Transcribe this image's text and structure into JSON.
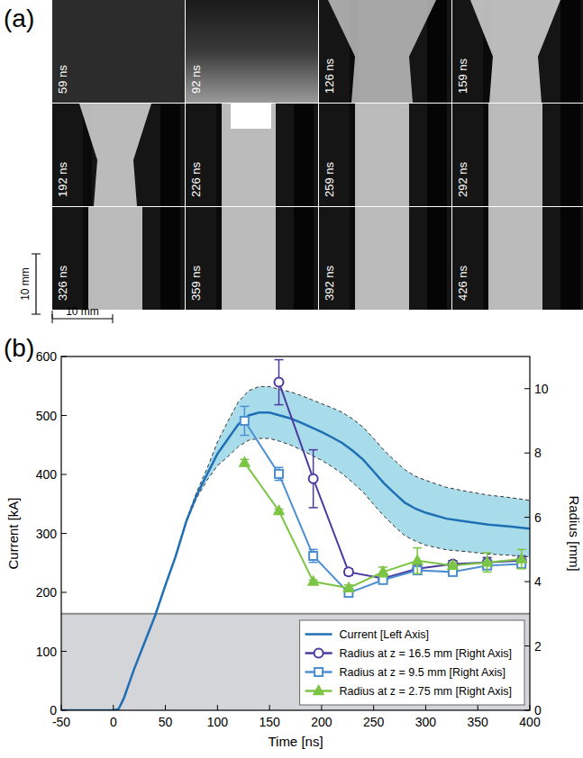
{
  "images": {
    "panel_label": "(a)",
    "frames": [
      "59 ns",
      "92 ns",
      "126 ns",
      "159 ns",
      "192 ns",
      "226 ns",
      "259 ns",
      "292 ns",
      "326 ns",
      "359 ns",
      "392 ns",
      "426 ns"
    ],
    "scale_bar_vertical": "10 mm",
    "scale_bar_horizontal": "10 mm"
  },
  "chart_data": {
    "panel_label": "(b)",
    "type": "line",
    "x_label": "Time [ns]",
    "y_label": "Current [kA]",
    "y2_label": "Radius [mm]",
    "xlim": [
      -50,
      400
    ],
    "xticks": [
      -50,
      0,
      50,
      100,
      150,
      200,
      250,
      300,
      350,
      400
    ],
    "ylim": [
      0,
      600
    ],
    "yticks": [
      0,
      100,
      200,
      300,
      400,
      500,
      600
    ],
    "y2lim": [
      0,
      11
    ],
    "y2ticks": [
      0,
      2,
      4,
      6,
      8,
      10
    ],
    "shaded_region_y2": [
      0,
      3
    ],
    "legend": "lower right",
    "series": [
      {
        "name": "Current [Left Axis]",
        "color": "#1f6fb5",
        "line_style": "solid",
        "x": [
          -50,
          -25,
          0,
          5,
          10,
          20,
          30,
          40,
          50,
          60,
          70,
          80,
          90,
          100,
          110,
          120,
          130,
          140,
          150,
          160,
          170,
          180,
          190,
          200,
          210,
          220,
          230,
          240,
          250,
          260,
          270,
          280,
          290,
          300,
          320,
          340,
          360,
          380,
          400
        ],
        "values": [
          0,
          0,
          0,
          2,
          20,
          70,
          115,
          160,
          212,
          262,
          320,
          365,
          400,
          435,
          460,
          485,
          500,
          505,
          505,
          500,
          495,
          488,
          480,
          472,
          463,
          453,
          440,
          425,
          405,
          385,
          368,
          352,
          342,
          335,
          325,
          320,
          315,
          312,
          308
        ],
        "error": [
          0,
          0,
          0,
          0,
          0,
          0,
          0,
          0,
          0,
          0,
          2,
          5,
          10,
          20,
          30,
          38,
          42,
          44,
          44,
          44,
          45,
          46,
          47,
          48,
          50,
          52,
          54,
          55,
          56,
          56,
          56,
          56,
          55,
          55,
          53,
          51,
          50,
          49,
          48
        ]
      },
      {
        "name": "Radius at z = 16.5 mm [Right Axis]",
        "color": "#4b3aa0",
        "axis": "y2",
        "marker": "circle",
        "line_style": "solid",
        "x": [
          159,
          192,
          226,
          259,
          292,
          326,
          359,
          392
        ],
        "values": [
          10.2,
          7.2,
          4.3,
          4.1,
          4.4,
          4.55,
          4.6,
          4.65
        ],
        "error": [
          0.7,
          0.9,
          0.1,
          0.1,
          0.1,
          0.1,
          0.15,
          0.15
        ]
      },
      {
        "name": "Radius at z = 9.5 mm [Right Axis]",
        "color": "#4c8fd0",
        "axis": "y2",
        "marker": "square",
        "line_style": "solid",
        "x": [
          126,
          159,
          192,
          226,
          259,
          292,
          326,
          359,
          392
        ],
        "values": [
          9.0,
          7.35,
          4.8,
          3.65,
          4.05,
          4.35,
          4.3,
          4.5,
          4.55
        ],
        "error": [
          0.45,
          0.2,
          0.2,
          0.1,
          0.1,
          0.1,
          0.1,
          0.1,
          0.1
        ]
      },
      {
        "name": "Radius at z = 2.75 mm [Right Axis]",
        "color": "#7cc444",
        "axis": "y2",
        "marker": "triangle",
        "line_style": "solid",
        "x": [
          126,
          159,
          192,
          226,
          259,
          292,
          326,
          359,
          392
        ],
        "values": [
          7.7,
          6.2,
          4.0,
          3.8,
          4.3,
          4.65,
          4.5,
          4.6,
          4.7
        ],
        "error": [
          0.1,
          0.05,
          0.05,
          0.1,
          0.15,
          0.4,
          0.1,
          0.3,
          0.3
        ]
      }
    ]
  }
}
